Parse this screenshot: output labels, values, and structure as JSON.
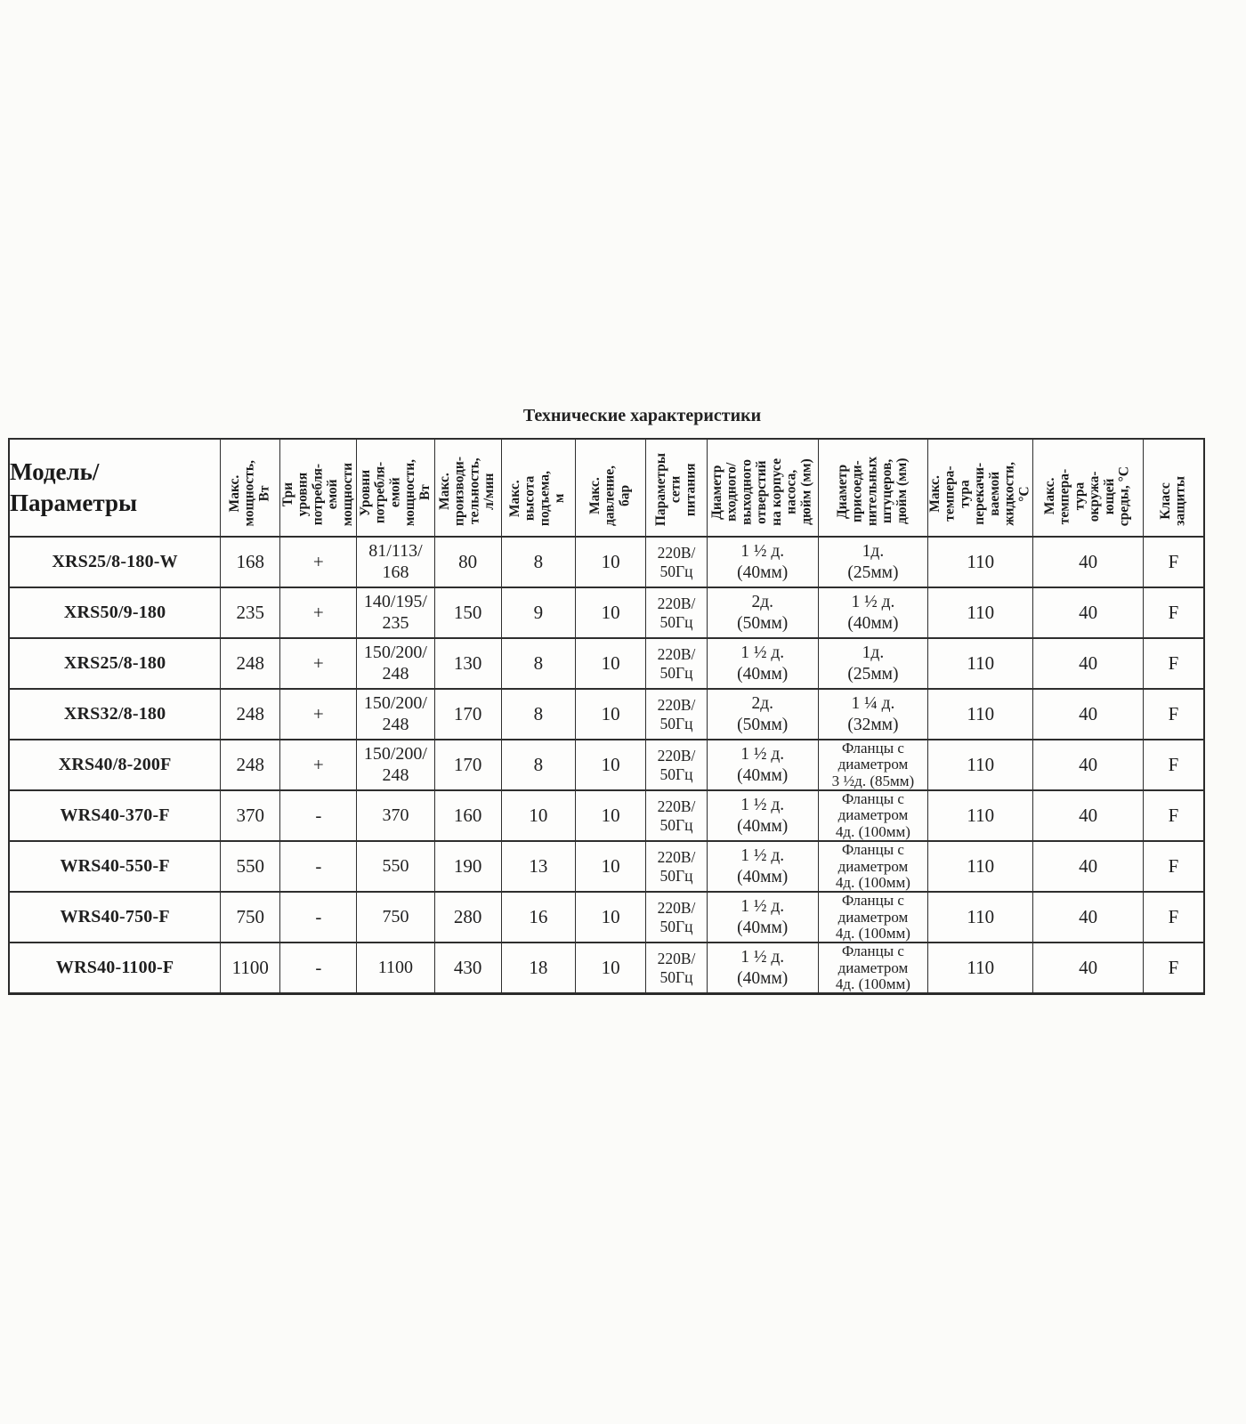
{
  "title": "Технические характеристики",
  "table": {
    "model_header": "Модель/\nПараметры",
    "columns": [
      {
        "id": "max-power",
        "label": "Макс.\nмощность,\nВт"
      },
      {
        "id": "three-power-levels",
        "label": "Три\nуровня\nпотребля-\nемой\nмощности"
      },
      {
        "id": "power-levels",
        "label": "Уровни\nпотребля-\nемой\nмощности,\nВт"
      },
      {
        "id": "max-flow",
        "label": "Макс.\nпроизводи-\nтельность,\nл/мин"
      },
      {
        "id": "max-lift-height",
        "label": "Макс.\nвысота\nподъема,\nм"
      },
      {
        "id": "max-pressure",
        "label": "Макс.\nдавление,\nбар"
      },
      {
        "id": "power-supply",
        "label": "Параметры\nсети\nпитания"
      },
      {
        "id": "inlet-outlet-diameter",
        "label": "Диаметр\nвходного/\nвыходного\nотверстий\nна корпусе\nнасоса,\nдюйм (мм)"
      },
      {
        "id": "fitting-diameter",
        "label": "Диаметр\nприсоеди-\nнительных\nштуцеров,\nдюйм (мм)"
      },
      {
        "id": "max-liquid-temp",
        "label": "Макс.\nтемпера-\nтура\nперекачи-\nваемой\nжидкости,\n°С"
      },
      {
        "id": "max-ambient-temp",
        "label": "Макс.\nтемпера-\nтура\nокружа-\nющей\nсреды, °С"
      },
      {
        "id": "protection-class",
        "label": "Класс\nзащиты"
      }
    ],
    "rows": [
      {
        "model": "XRS25/8-180-W",
        "values": [
          "168",
          "+",
          "81/113/\n168",
          "80",
          "8",
          "10",
          "220В/\n50Гц",
          "1 ½ д.\n(40мм)",
          "1д.\n(25мм)",
          "110",
          "40",
          "F"
        ]
      },
      {
        "model": "XRS50/9-180",
        "values": [
          "235",
          "+",
          "140/195/\n235",
          "150",
          "9",
          "10",
          "220В/\n50Гц",
          "2д.\n(50мм)",
          "1 ½ д.\n(40мм)",
          "110",
          "40",
          "F"
        ]
      },
      {
        "model": "XRS25/8-180",
        "values": [
          "248",
          "+",
          "150/200/\n248",
          "130",
          "8",
          "10",
          "220В/\n50Гц",
          "1 ½ д.\n(40мм)",
          "1д.\n(25мм)",
          "110",
          "40",
          "F"
        ]
      },
      {
        "model": "XRS32/8-180",
        "values": [
          "248",
          "+",
          "150/200/\n248",
          "170",
          "8",
          "10",
          "220В/\n50Гц",
          "2д.\n(50мм)",
          "1 ¼ д.\n(32мм)",
          "110",
          "40",
          "F"
        ]
      },
      {
        "model": "XRS40/8-200F",
        "values": [
          "248",
          "+",
          "150/200/\n248",
          "170",
          "8",
          "10",
          "220В/\n50Гц",
          "1 ½ д.\n(40мм)",
          "Фланцы с\nдиаметром\n3 ½д. (85мм)",
          "110",
          "40",
          "F"
        ]
      },
      {
        "model": "WRS40-370-F",
        "values": [
          "370",
          "-",
          "370",
          "160",
          "10",
          "10",
          "220В/\n50Гц",
          "1 ½ д.\n(40мм)",
          "Фланцы с\nдиаметром\n4д. (100мм)",
          "110",
          "40",
          "F"
        ]
      },
      {
        "model": "WRS40-550-F",
        "values": [
          "550",
          "-",
          "550",
          "190",
          "13",
          "10",
          "220В/\n50Гц",
          "1 ½ д.\n(40мм)",
          "Фланцы с\nдиаметром\n4д. (100мм)",
          "110",
          "40",
          "F"
        ]
      },
      {
        "model": "WRS40-750-F",
        "values": [
          "750",
          "-",
          "750",
          "280",
          "16",
          "10",
          "220В/\n50Гц",
          "1 ½ д.\n(40мм)",
          "Фланцы с\nдиаметром\n4д. (100мм)",
          "110",
          "40",
          "F"
        ]
      },
      {
        "model": "WRS40-1100-F",
        "values": [
          "1100",
          "-",
          "1100",
          "430",
          "18",
          "10",
          "220В/\n50Гц",
          "1 ½ д.\n(40мм)",
          "Фланцы с\nдиаметром\n4д. (100мм)",
          "110",
          "40",
          "F"
        ]
      }
    ]
  }
}
